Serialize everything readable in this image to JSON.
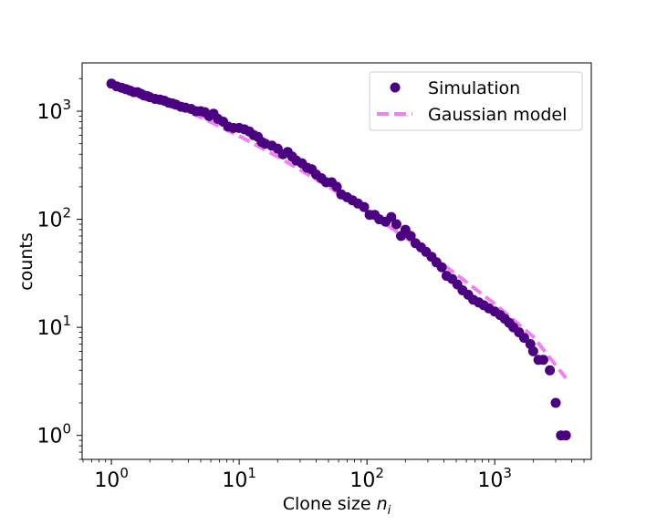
{
  "chart_data": {
    "type": "scatter",
    "xlabel": "Clone size",
    "xlabel_symbol": "n",
    "xlabel_subscript": "i",
    "ylabel": "counts",
    "xscale": "log",
    "yscale": "log",
    "xlim": [
      0.59,
      5700
    ],
    "ylim": [
      0.6,
      2800
    ],
    "xticks": [
      1,
      10,
      100,
      1000
    ],
    "yticks": [
      1,
      10,
      100,
      1000
    ],
    "tick_base": "10",
    "tick_exponents_x": [
      "0",
      "1",
      "2",
      "3"
    ],
    "tick_exponents_y": [
      "0",
      "1",
      "2",
      "3"
    ],
    "grid": false,
    "legend_position": "top-right",
    "series": [
      {
        "name": "Simulation",
        "kind": "scatter",
        "color": "#4b0082",
        "x": [
          1.0,
          1.1,
          1.2,
          1.3,
          1.4,
          1.5,
          1.6,
          1.7,
          1.8,
          1.9,
          2.0,
          2.2,
          2.4,
          2.6,
          2.8,
          3.0,
          3.2,
          3.5,
          3.8,
          4.2,
          4.6,
          5.0,
          5.4,
          5.8,
          6.3,
          6.8,
          7.5,
          8.2,
          9.0,
          10,
          11,
          12,
          13,
          14,
          15,
          16,
          18,
          20,
          22,
          24,
          26,
          28,
          31,
          34,
          37,
          40,
          44,
          48,
          53,
          58,
          63,
          70,
          77,
          85,
          95,
          105,
          115,
          125,
          140,
          155,
          170,
          185,
          200,
          220,
          240,
          265,
          290,
          320,
          350,
          385,
          420,
          465,
          510,
          560,
          620,
          680,
          750,
          820,
          900,
          1000,
          1100,
          1200,
          1300,
          1400,
          1550,
          1700,
          1900,
          2000,
          2200,
          2400,
          2700,
          3000,
          3300,
          3600
        ],
        "y": [
          1800,
          1700,
          1650,
          1600,
          1550,
          1500,
          1500,
          1450,
          1400,
          1380,
          1350,
          1300,
          1280,
          1250,
          1200,
          1180,
          1150,
          1100,
          1080,
          1050,
          1000,
          1000,
          980,
          900,
          950,
          850,
          800,
          720,
          700,
          700,
          680,
          650,
          600,
          580,
          520,
          500,
          480,
          450,
          400,
          420,
          380,
          350,
          330,
          300,
          290,
          260,
          240,
          220,
          220,
          200,
          170,
          160,
          150,
          140,
          130,
          110,
          110,
          100,
          95,
          105,
          90,
          70,
          80,
          70,
          60,
          55,
          50,
          45,
          40,
          36,
          30,
          28,
          25,
          22,
          20,
          18,
          17,
          16,
          15,
          14,
          13,
          12,
          11,
          10,
          9,
          8,
          7,
          6,
          5,
          5,
          4,
          2,
          1,
          1
        ],
        "note": ""
      },
      {
        "name": "Gaussian model",
        "kind": "line",
        "style": "dashed",
        "color": "#ee82ee",
        "x": [
          1,
          2,
          5,
          10,
          20,
          50,
          100,
          200,
          500,
          1000,
          2000,
          3600
        ],
        "y": [
          1850,
          1400,
          880,
          590,
          380,
          200,
          118,
          68,
          31,
          16.5,
          8.2,
          3.4
        ]
      }
    ]
  }
}
